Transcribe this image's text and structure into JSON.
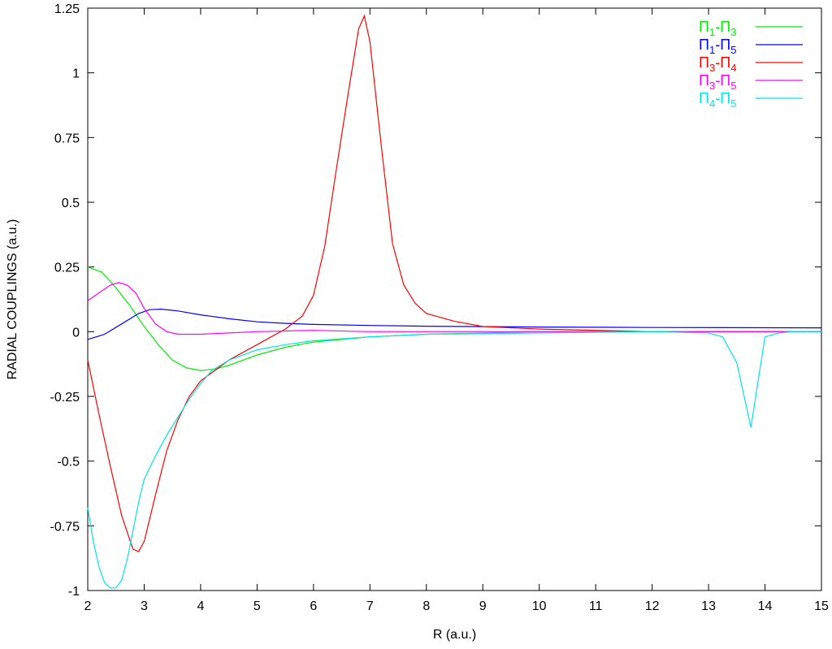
{
  "chart_data": {
    "type": "line",
    "xlabel": "R (a.u.)",
    "ylabel": "RADIAL COUPLINGS (a.u.)",
    "xlim": [
      2,
      15
    ],
    "ylim": [
      -1,
      1.25
    ],
    "xticks": [
      "2",
      "3",
      "4",
      "5",
      "6",
      "7",
      "8",
      "9",
      "10",
      "11",
      "12",
      "13",
      "14",
      "15"
    ],
    "yticks": [
      "-1",
      "-0.75",
      "-0.5",
      "-0.25",
      "0",
      "0.25",
      "0.5",
      "0.75",
      "1",
      "1.25"
    ],
    "grid": false,
    "legend_position": "top-right",
    "series": [
      {
        "name": "Π1-Π3",
        "label_main": "Π",
        "sub1": "1",
        "label_mid": "-Π",
        "sub2": "3",
        "color": "#00ee00",
        "x": [
          2.0,
          2.25,
          2.5,
          2.75,
          3.0,
          3.25,
          3.5,
          3.75,
          4.0,
          4.25,
          4.5,
          5.0,
          5.5,
          6.0,
          7.0,
          8.0,
          10.0,
          12.0,
          15.0
        ],
        "y": [
          0.25,
          0.23,
          0.17,
          0.1,
          0.02,
          -0.05,
          -0.11,
          -0.14,
          -0.15,
          -0.145,
          -0.13,
          -0.09,
          -0.06,
          -0.04,
          -0.02,
          -0.01,
          0.0,
          0.0,
          0.0
        ]
      },
      {
        "name": "Π1-Π5",
        "label_main": "Π",
        "sub1": "1",
        "label_mid": "-Π",
        "sub2": "5",
        "color": "#0000ff",
        "x": [
          2.0,
          2.3,
          2.6,
          2.9,
          3.1,
          3.3,
          3.6,
          4.0,
          4.5,
          5.0,
          5.5,
          6.0,
          7.0,
          8.0,
          10.0,
          12.0,
          15.0
        ],
        "y": [
          -0.03,
          -0.01,
          0.03,
          0.07,
          0.085,
          0.087,
          0.08,
          0.065,
          0.05,
          0.038,
          0.032,
          0.028,
          0.024,
          0.021,
          0.018,
          0.016,
          0.015
        ]
      },
      {
        "name": "Π3-Π4",
        "label_main": "Π",
        "sub1": "3",
        "label_mid": "-Π",
        "sub2": "4",
        "color": "#ff0000",
        "x": [
          2.0,
          2.2,
          2.4,
          2.6,
          2.8,
          2.9,
          3.0,
          3.2,
          3.4,
          3.6,
          3.8,
          4.0,
          4.5,
          5.0,
          5.5,
          5.8,
          6.0,
          6.2,
          6.4,
          6.6,
          6.8,
          6.9,
          7.0,
          7.2,
          7.4,
          7.6,
          7.8,
          8.0,
          8.5,
          9.0,
          10.0,
          12.0,
          15.0
        ],
        "y": [
          -0.11,
          -0.32,
          -0.52,
          -0.71,
          -0.84,
          -0.85,
          -0.81,
          -0.63,
          -0.46,
          -0.34,
          -0.25,
          -0.19,
          -0.11,
          -0.05,
          0.01,
          0.06,
          0.14,
          0.33,
          0.62,
          0.9,
          1.17,
          1.22,
          1.12,
          0.72,
          0.34,
          0.18,
          0.11,
          0.07,
          0.04,
          0.02,
          0.01,
          0.0,
          0.0
        ]
      },
      {
        "name": "Π3-Π5",
        "label_main": "Π",
        "sub1": "3",
        "label_mid": "-Π",
        "sub2": "5",
        "color": "#ff00ff",
        "x": [
          2.0,
          2.2,
          2.4,
          2.55,
          2.7,
          2.85,
          3.0,
          3.2,
          3.4,
          3.6,
          4.0,
          4.5,
          5.0,
          6.0,
          7.0,
          8.0,
          10.0,
          12.0,
          15.0
        ],
        "y": [
          0.12,
          0.15,
          0.18,
          0.19,
          0.18,
          0.15,
          0.09,
          0.03,
          0.0,
          -0.01,
          -0.01,
          -0.005,
          0.0,
          0.005,
          0.0,
          0.0,
          0.0,
          0.0,
          0.0
        ]
      },
      {
        "name": "Π4-Π5",
        "label_main": "Π",
        "sub1": "4",
        "label_mid": "-Π",
        "sub2": "5",
        "color": "#00e5e5",
        "x": [
          2.0,
          2.1,
          2.2,
          2.3,
          2.4,
          2.5,
          2.6,
          2.7,
          2.8,
          2.9,
          3.0,
          3.2,
          3.4,
          3.6,
          3.8,
          4.0,
          4.2,
          4.5,
          5.0,
          5.5,
          6.0,
          7.0,
          8.0,
          10.0,
          12.0,
          13.0,
          13.25,
          13.5,
          13.75,
          14.0,
          14.25,
          14.5,
          15.0
        ],
        "y": [
          -0.68,
          -0.81,
          -0.91,
          -0.97,
          -0.99,
          -0.99,
          -0.96,
          -0.88,
          -0.77,
          -0.66,
          -0.57,
          -0.48,
          -0.4,
          -0.33,
          -0.26,
          -0.2,
          -0.15,
          -0.11,
          -0.07,
          -0.05,
          -0.035,
          -0.02,
          -0.01,
          -0.005,
          0.0,
          -0.005,
          -0.02,
          -0.12,
          -0.37,
          -0.02,
          -0.005,
          0.0,
          0.0
        ]
      }
    ]
  }
}
